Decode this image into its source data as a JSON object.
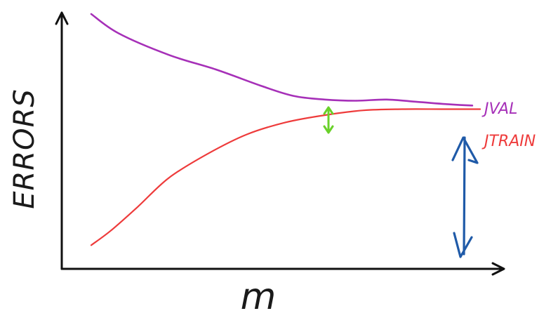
{
  "chart_data": {
    "type": "line",
    "title": "",
    "xlabel": "m",
    "ylabel": "ERRORS",
    "x_ticks": "none",
    "y_ticks": "none",
    "grid": false,
    "xlim": [
      0,
      1
    ],
    "ylim": [
      0,
      1
    ],
    "series": [
      {
        "name": "JVAL",
        "color": "#a630b8",
        "x": [
          0.0,
          0.07,
          0.2,
          0.32,
          0.44,
          0.52,
          0.6,
          0.68,
          0.76,
          0.84,
          0.92,
          0.98
        ],
        "y": [
          1.0,
          0.92,
          0.83,
          0.77,
          0.7,
          0.66,
          0.645,
          0.64,
          0.645,
          0.635,
          0.625,
          0.62
        ]
      },
      {
        "name": "JTRAIN",
        "color": "#ee3b3b",
        "x": [
          0.0,
          0.05,
          0.12,
          0.2,
          0.3,
          0.4,
          0.5,
          0.6,
          0.7,
          0.8,
          0.9,
          1.0
        ],
        "y": [
          0.04,
          0.1,
          0.2,
          0.32,
          0.42,
          0.5,
          0.55,
          0.58,
          0.6,
          0.605,
          0.605,
          0.605
        ]
      }
    ],
    "annotations": [
      {
        "kind": "double-arrow",
        "color": "#6ad12a",
        "meaning": "gap between JVAL and JTRAIN",
        "x": 0.61,
        "y1": 0.635,
        "y2": 0.585
      },
      {
        "kind": "double-arrow",
        "color": "#1f5aa8",
        "meaning": "JTRAIN down to axis",
        "x": 0.93,
        "y1": 0.59,
        "y2": 0.02
      }
    ],
    "colors": {
      "axis": "#111111",
      "val": "#a630b8",
      "train": "#ee3b3b",
      "gap_arrow": "#6ad12a",
      "blue_arrow": "#1f5aa8"
    }
  }
}
